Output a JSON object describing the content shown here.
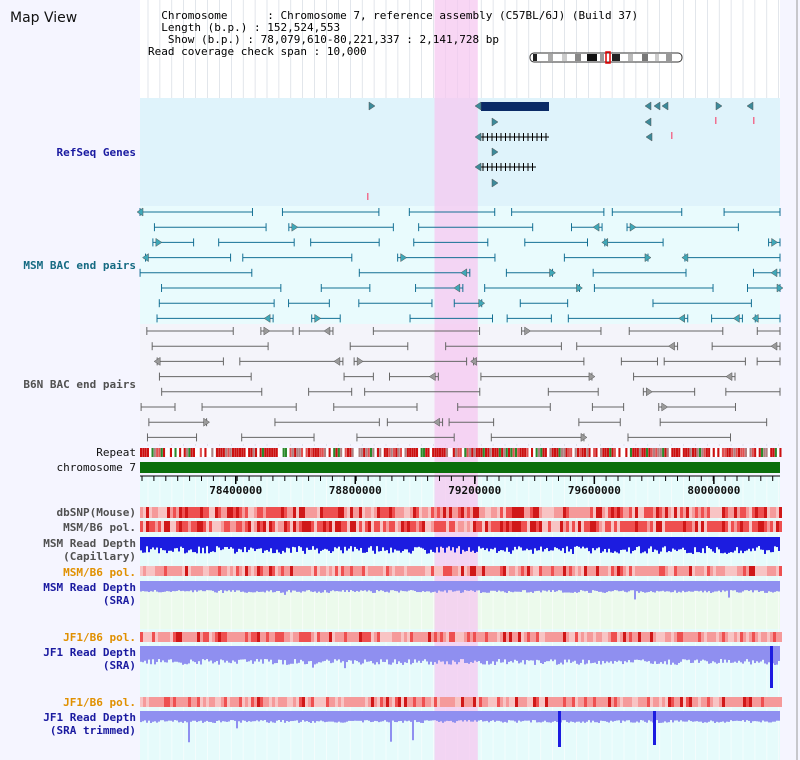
{
  "app": {
    "title": "Map View"
  },
  "info": {
    "chromosome_key": "Chromosome",
    "chromosome_value": "Chromosome 7, reference assembly (C57BL/6J) (Build 37)",
    "length_key": "Length (b.p.)",
    "length_value": "152,524,553",
    "show_key": "Show (b.p.)",
    "show_value": "78,079,610-80,221,337 : 2,141,728 bp",
    "coverage_key": "Read coverage check span",
    "coverage_value": "10,000"
  },
  "tracks": {
    "refseq": "RefSeq Genes",
    "msm_bac": "MSM BAC end pairs",
    "b6n_bac": "B6N BAC end pairs",
    "repeat": "Repeat",
    "chromosome": "chromosome 7",
    "dbsnp": "dbSNP(Mouse)",
    "msm_pol1": "MSM/B6 pol.",
    "msm_rd_cap_1": "MSM Read Depth",
    "msm_rd_cap_2": "(Capillary)",
    "msm_pol2": "MSM/B6 pol.",
    "msm_rd_sra_1": "MSM Read Depth",
    "msm_rd_sra_2": "(SRA)",
    "jf1_pol1": "JF1/B6 pol.",
    "jf1_rd_sra_1": "JF1 Read Depth",
    "jf1_rd_sra_2": "(SRA)",
    "jf1_pol2": "JF1/B6 pol.",
    "jf1_rd_trim_1": "JF1 Read Depth",
    "jf1_rd_trim_2": "(SRA trimmed)"
  },
  "axis": {
    "ticks": [
      "78400000",
      "78800000",
      "79200000",
      "79600000",
      "80000000"
    ],
    "tick_values": [
      78400000,
      78800000,
      79200000,
      79600000,
      80000000
    ],
    "range": [
      78079610,
      80221337
    ]
  },
  "highlight": {
    "range": [
      79065000,
      79210000
    ]
  },
  "colors": {
    "refseq_bg": "#dff3fb",
    "msm_bg": "#e9fbfd",
    "b6n_bg": "#f4f4fa",
    "highlight": "#f5c8f0",
    "chrom_bar": "#0a6e0a",
    "pol_red": "#e84040",
    "depth_blue": "#1c1ce0",
    "depth_light": "#8f8ff0",
    "msm_line": "#147094",
    "b6n_line": "#666666",
    "gene": "#0a2a66"
  }
}
